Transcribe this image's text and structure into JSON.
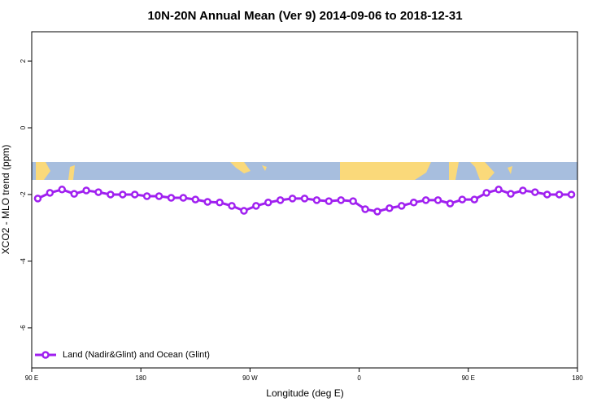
{
  "chart_data": {
    "type": "line",
    "title": "10N-20N Annual Mean (Ver 9)   2014-09-06 to 2018-12-31",
    "xlabel": "Longitude (deg E)",
    "ylabel": "XCO2 - MLO trend (ppm)",
    "x": [
      95,
      105,
      115,
      125,
      135,
      145,
      155,
      165,
      175,
      185,
      195,
      205,
      215,
      225,
      235,
      245,
      255,
      265,
      275,
      285,
      295,
      305,
      315,
      325,
      335,
      345,
      355,
      365,
      375,
      385,
      395,
      405,
      415,
      425,
      435,
      445,
      455,
      465,
      475,
      485,
      495,
      505,
      515,
      525,
      535
    ],
    "series": [
      {
        "name": "Land (Nadir&Glint) and Ocean (Glint)",
        "color": "#a020f0",
        "values": [
          -2.12,
          -1.95,
          -1.85,
          -1.98,
          -1.88,
          -1.93,
          -2.0,
          -2.0,
          -2.0,
          -2.05,
          -2.05,
          -2.1,
          -2.1,
          -2.15,
          -2.22,
          -2.24,
          -2.34,
          -2.49,
          -2.34,
          -2.24,
          -2.17,
          -2.12,
          -2.12,
          -2.17,
          -2.2,
          -2.17,
          -2.2,
          -2.44,
          -2.51,
          -2.41,
          -2.34,
          -2.24,
          -2.17,
          -2.17,
          -2.27,
          -2.15,
          -2.15,
          -1.95,
          -1.85,
          -1.98,
          -1.88,
          -1.93,
          -2.0,
          -2.0,
          -2.0
        ]
      }
    ],
    "xlim": [
      90,
      540
    ],
    "xticks": [
      {
        "value": 90,
        "label": "90 E"
      },
      {
        "value": 180,
        "label": "180"
      },
      {
        "value": 270,
        "label": "90 W"
      },
      {
        "value": 360,
        "label": "0"
      },
      {
        "value": 450,
        "label": "90 E"
      },
      {
        "value": 540,
        "label": "180"
      }
    ],
    "ylim": [
      -7.2,
      2.88
    ],
    "yticks": [
      2,
      0,
      -2,
      -4,
      -6
    ],
    "legend": "bottom-left"
  }
}
